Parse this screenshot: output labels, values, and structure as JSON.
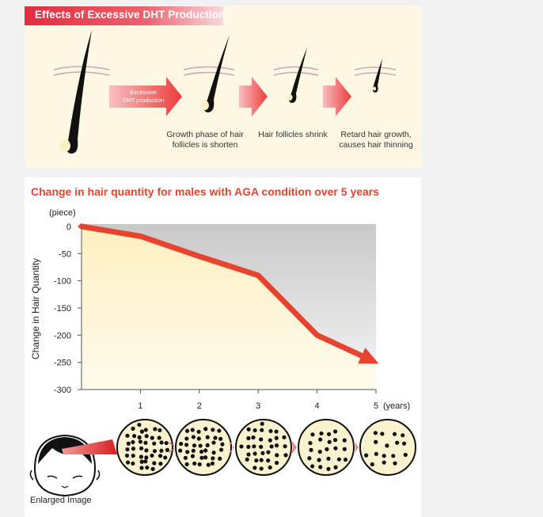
{
  "diagram": {
    "title": "Effects of Excessive DHT Production",
    "arrow_label_line1": "Excessive",
    "arrow_label_line2": "DHT production",
    "stages": [
      {
        "line1": "Growth phase of hair",
        "line2": "follicles is shorten"
      },
      {
        "line1": "Hair follicles shrink",
        "line2": ""
      },
      {
        "line1": "Retard hair growth,",
        "line2": "causes hair thinning"
      }
    ],
    "colors": {
      "title_bar": "#e32c3f",
      "arrow": "#f25a5a",
      "hair": "#111111",
      "bulb": "#fbf1c6",
      "skin_line": "#c9a7b4"
    }
  },
  "chart_data": {
    "type": "line",
    "title": "Change in hair quantity for males with AGA condition over 5 years",
    "ylabel": "Change in Hair Quantity",
    "yunit": "(piece)",
    "xunit": "(years)",
    "x": [
      0,
      1,
      2,
      3,
      4,
      5
    ],
    "values": [
      0,
      -18,
      -55,
      -90,
      -200,
      -250
    ],
    "xticks": [
      "1",
      "2",
      "3",
      "4",
      "5"
    ],
    "yticks": [
      "0",
      "-50",
      "-100",
      "-150",
      "-200",
      "-250",
      "-300"
    ],
    "xlim": [
      0,
      5
    ],
    "ylim": [
      -300,
      0
    ],
    "grid": false,
    "line_color": "#e8432e"
  },
  "bottom": {
    "label": "Enlarged Image",
    "circles": [
      {
        "year": 1,
        "density": 1.0
      },
      {
        "year": 2,
        "density": 0.9
      },
      {
        "year": 3,
        "density": 0.75
      },
      {
        "year": 4,
        "density": 0.55
      },
      {
        "year": 5,
        "density": 0.4
      }
    ]
  }
}
